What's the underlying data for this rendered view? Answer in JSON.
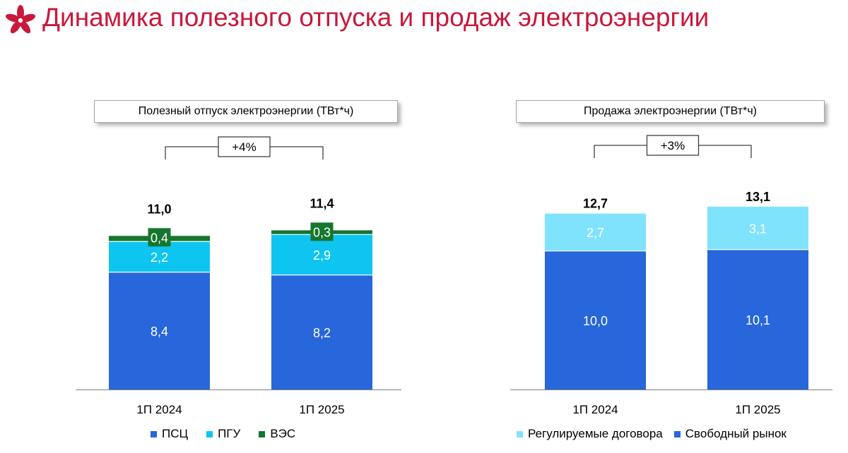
{
  "page": {
    "title": "Динамика полезного отпуска и продаж электроэнергии"
  },
  "colors": {
    "brand": "#c8193c",
    "psc": "#2766db",
    "pgu": "#0ec5f1",
    "ves": "#16762d",
    "reg": "#80e3fd",
    "free": "#2766db"
  },
  "chart_data": [
    {
      "type": "bar",
      "stacked": true,
      "title": "Полезный отпуск электроэнергии (ТВт*ч)",
      "categories": [
        "1П 2024",
        "1П 2025"
      ],
      "series": [
        {
          "name": "ПСЦ",
          "values": [
            8.4,
            8.2
          ],
          "labels": [
            "8,4",
            "8,2"
          ],
          "color_key": "psc"
        },
        {
          "name": "ПГУ",
          "values": [
            2.2,
            2.9
          ],
          "labels": [
            "2,2",
            "2,9"
          ],
          "color_key": "pgu"
        },
        {
          "name": "ВЭС",
          "values": [
            0.4,
            0.3
          ],
          "labels": [
            "0,4",
            "0,3"
          ],
          "color_key": "ves"
        }
      ],
      "totals": [
        "11,0",
        "11,4"
      ],
      "change": "+4%",
      "ylim": [
        0,
        11.4
      ],
      "legend": "bottom"
    },
    {
      "type": "bar",
      "stacked": true,
      "title": "Продажа электроэнергии (ТВт*ч)",
      "categories": [
        "1П 2024",
        "1П 2025"
      ],
      "series": [
        {
          "name": "Свободный рынок",
          "values": [
            10.0,
            10.1
          ],
          "labels": [
            "10,0",
            "10,1"
          ],
          "color_key": "free"
        },
        {
          "name": "Регулируемые договора",
          "values": [
            2.7,
            3.1
          ],
          "labels": [
            "2,7",
            "3,1"
          ],
          "color_key": "reg"
        }
      ],
      "totals": [
        "12,7",
        "13,1"
      ],
      "change": "+3%",
      "ylim": [
        0,
        13.1
      ],
      "legend": "bottom"
    }
  ]
}
